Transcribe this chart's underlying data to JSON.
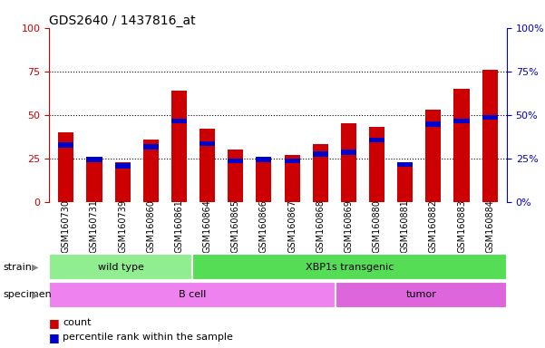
{
  "title": "GDS2640 / 1437816_at",
  "samples": [
    "GSM160730",
    "GSM160731",
    "GSM160739",
    "GSM160860",
    "GSM160861",
    "GSM160864",
    "GSM160865",
    "GSM160866",
    "GSM160867",
    "GSM160868",
    "GSM160869",
    "GSM160880",
    "GSM160881",
    "GSM160882",
    "GSM160883",
    "GSM160884"
  ],
  "count_values": [
    40,
    26,
    23,
    36,
    64,
    42,
    30,
    26,
    27,
    33,
    45,
    43,
    22,
    53,
    65,
    76
  ],
  "percentile_values": [
    34,
    26,
    22,
    33,
    48,
    35,
    25,
    26,
    25,
    29,
    30,
    37,
    23,
    46,
    48,
    50
  ],
  "strain_groups": [
    {
      "label": "wild type",
      "start": 0,
      "end": 5,
      "color": "#90ee90"
    },
    {
      "label": "XBP1s transgenic",
      "start": 5,
      "end": 16,
      "color": "#55dd55"
    }
  ],
  "specimen_groups": [
    {
      "label": "B cell",
      "start": 0,
      "end": 10,
      "color": "#ee82ee"
    },
    {
      "label": "tumor",
      "start": 10,
      "end": 16,
      "color": "#dd66dd"
    }
  ],
  "bar_color": "#cc0000",
  "percentile_color": "#0000cc",
  "left_axis_color": "#cc0000",
  "right_axis_color": "#0000cc",
  "ylim": [
    0,
    100
  ],
  "yticks": [
    0,
    25,
    50,
    75,
    100
  ],
  "title_fontsize": 10,
  "tick_fontsize": 7,
  "label_fontsize": 8,
  "bar_width": 0.55,
  "tick_bg_color": "#c8c8c8"
}
